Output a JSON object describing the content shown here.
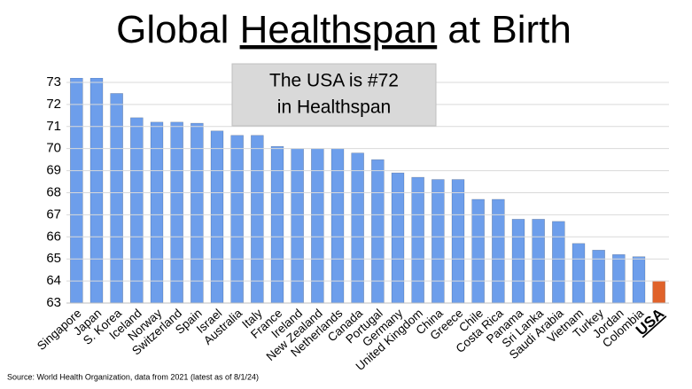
{
  "chart_data": {
    "type": "bar",
    "title": [
      "Global ",
      "Healthspan",
      " at Birth"
    ],
    "annotation": [
      "The USA is #72",
      "in Healthspan"
    ],
    "source": "Source: World Health Organization, data from 2021 (latest as of 8/1/24)",
    "categories": [
      "Singapore",
      "Japan",
      "S. Korea",
      "Iceland",
      "Norway",
      "Switzerland",
      "Spain",
      "Israel",
      "Australia",
      "Italy",
      "France",
      "Ireland",
      "New Zealand",
      "Netherlands",
      "Canada",
      "Portugal",
      "Germany",
      "United Kingdom",
      "China",
      "Greece",
      "Chile",
      "Costa Rica",
      "Panama",
      "Sri Lanka",
      "Saudi Arabia",
      "Vietnam",
      "Turkey",
      "Jordan",
      "Colombia",
      "USA"
    ],
    "values": [
      73.2,
      73.2,
      72.5,
      71.4,
      71.2,
      71.2,
      71.15,
      70.8,
      70.6,
      70.6,
      70.1,
      70.0,
      70.0,
      70.0,
      69.8,
      69.5,
      68.9,
      68.7,
      68.6,
      68.6,
      67.7,
      67.7,
      66.8,
      66.8,
      66.7,
      65.7,
      65.4,
      65.2,
      65.1,
      64.0
    ],
    "colors": [
      "#6d9eeb",
      "#6d9eeb",
      "#6d9eeb",
      "#6d9eeb",
      "#6d9eeb",
      "#6d9eeb",
      "#6d9eeb",
      "#6d9eeb",
      "#6d9eeb",
      "#6d9eeb",
      "#6d9eeb",
      "#6d9eeb",
      "#6d9eeb",
      "#6d9eeb",
      "#6d9eeb",
      "#6d9eeb",
      "#6d9eeb",
      "#6d9eeb",
      "#6d9eeb",
      "#6d9eeb",
      "#6d9eeb",
      "#6d9eeb",
      "#6d9eeb",
      "#6d9eeb",
      "#6d9eeb",
      "#6d9eeb",
      "#6d9eeb",
      "#6d9eeb",
      "#6d9eeb",
      "#e0622a"
    ],
    "ylim": [
      63,
      73.2
    ],
    "yticks": [
      63,
      64,
      65,
      66,
      67,
      68,
      69,
      70,
      71,
      72,
      73
    ],
    "grid": true
  }
}
